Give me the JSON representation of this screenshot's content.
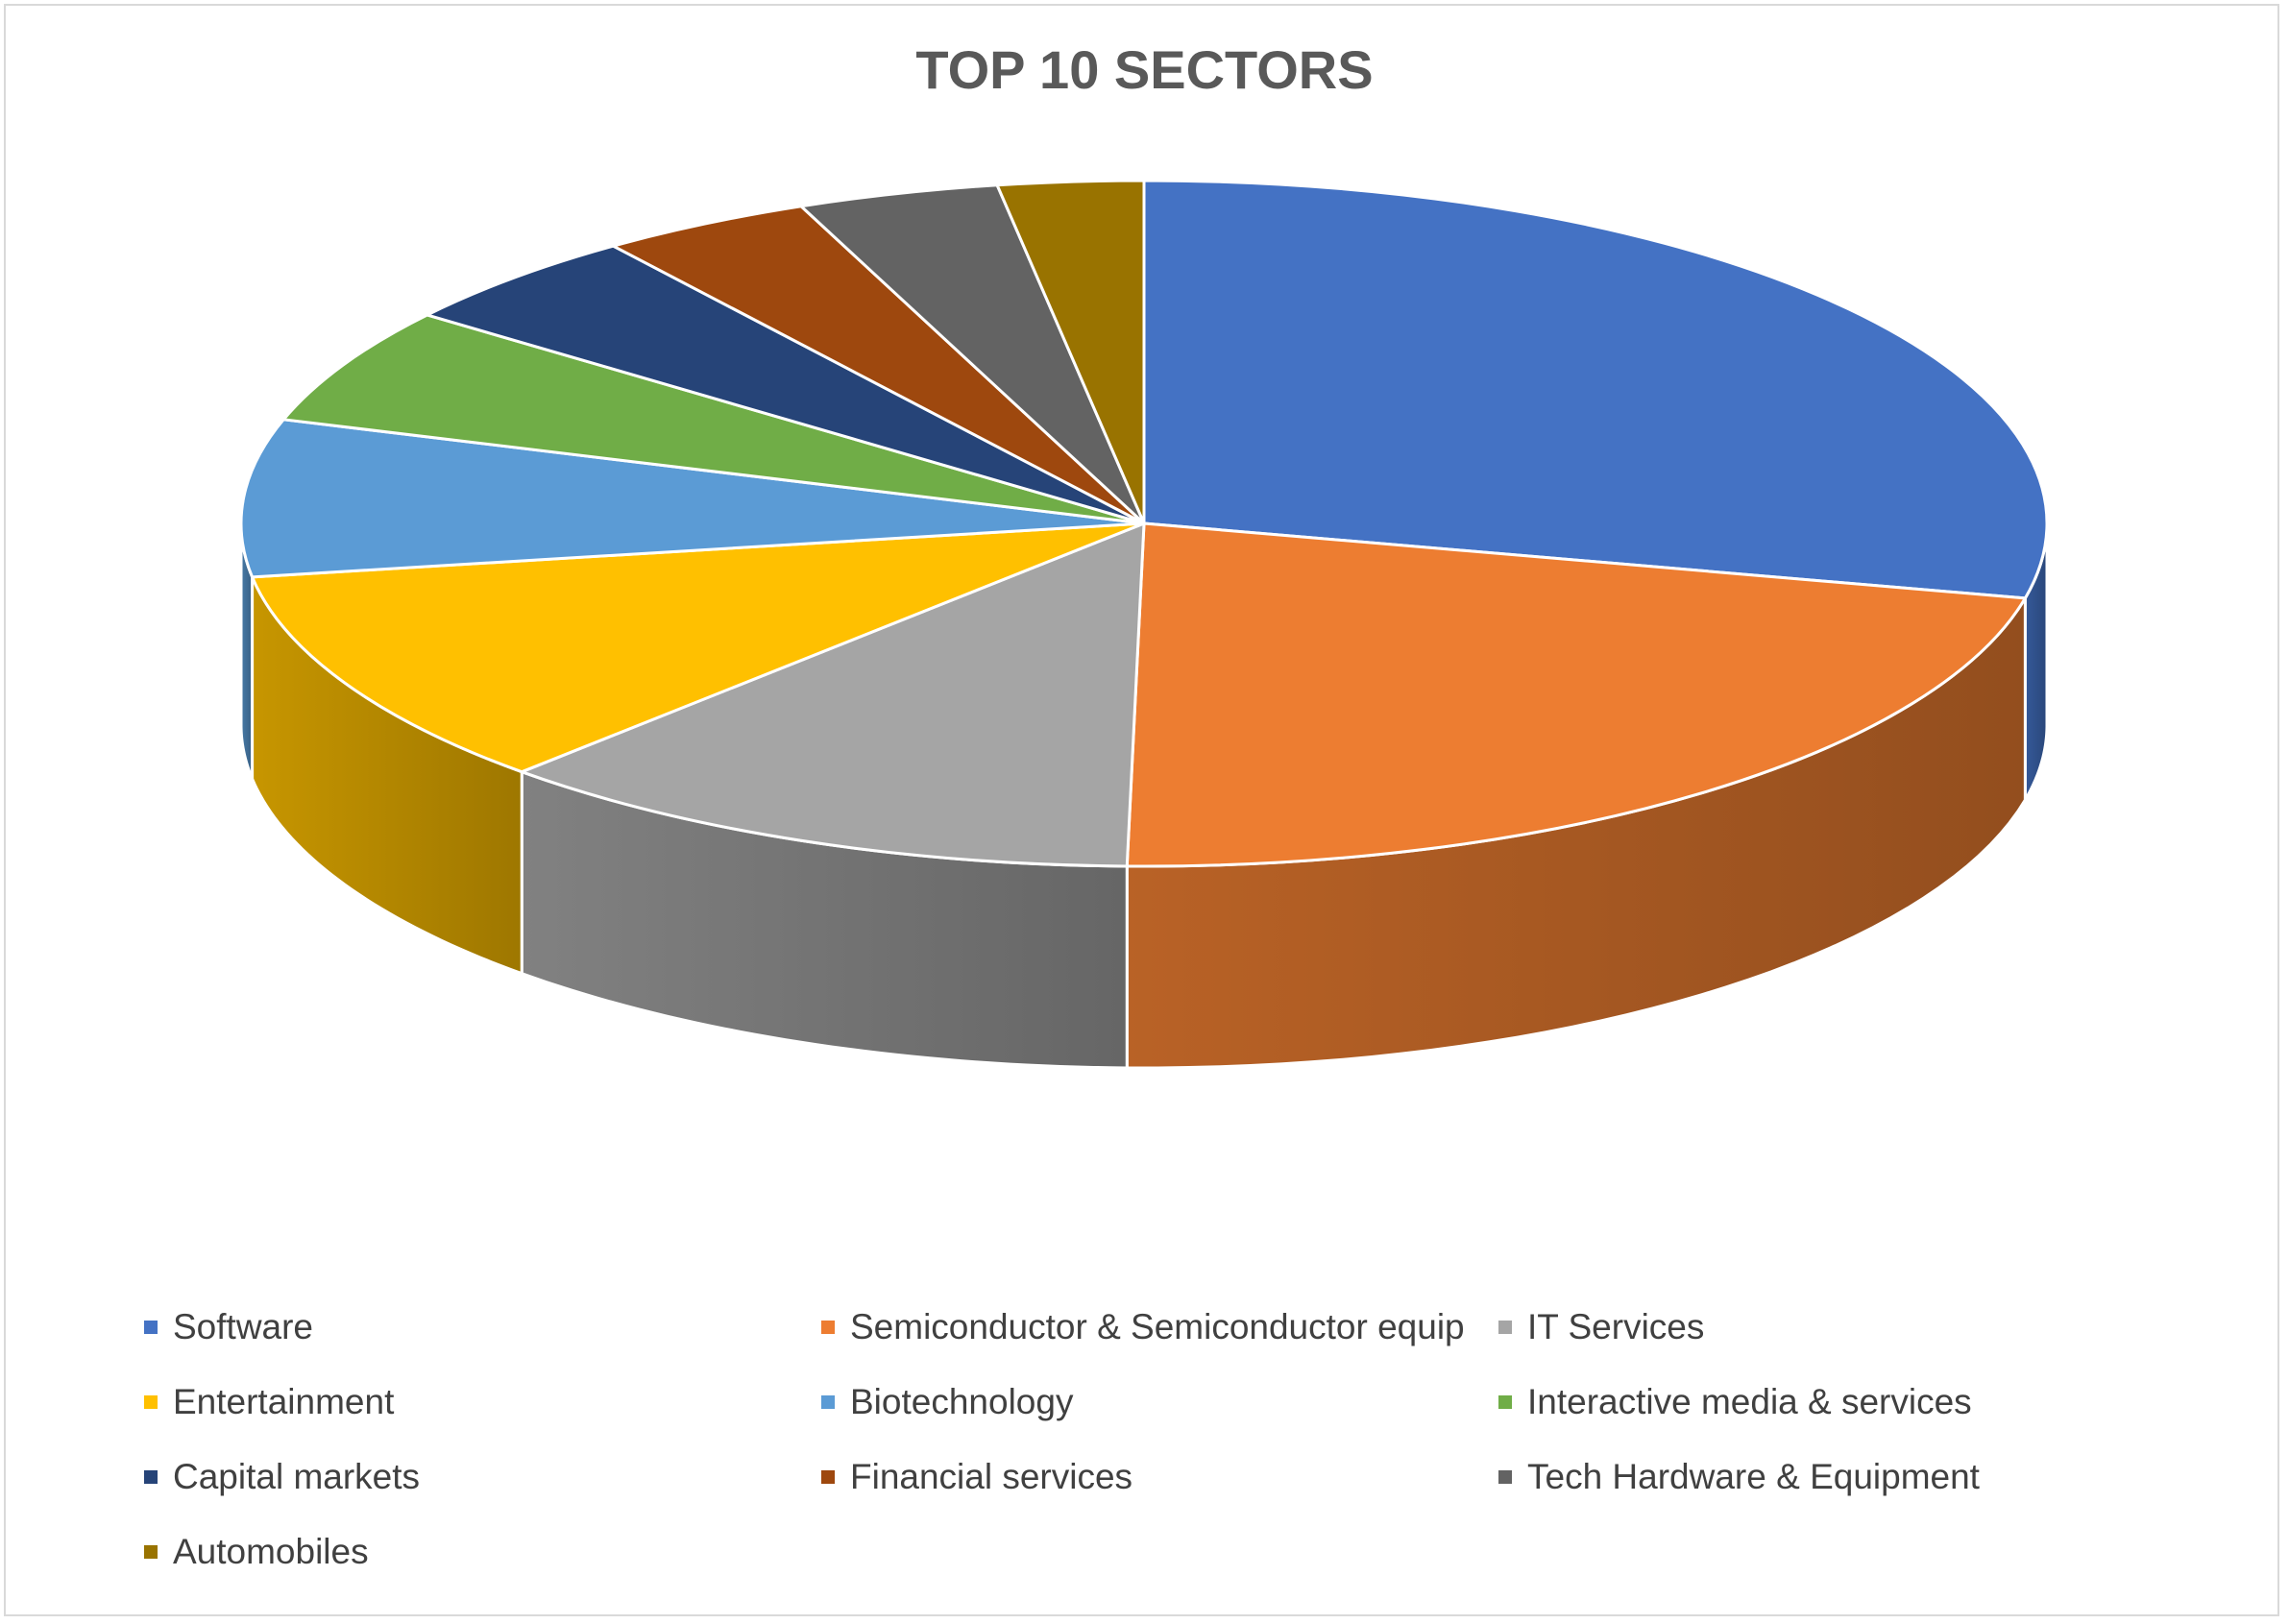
{
  "chart_data": {
    "type": "pie",
    "title": "TOP 10 SECTORS",
    "style": "3d-pie",
    "legend_position": "bottom",
    "slices": [
      {
        "label": "Software",
        "value": 28.5,
        "color": "#4472C4"
      },
      {
        "label": "Semiconductor & Semiconductor equip",
        "value": 21.8,
        "color": "#ED7D31"
      },
      {
        "label": "IT Services",
        "value": 11.8,
        "color": "#A5A5A5"
      },
      {
        "label": "Entertainment",
        "value": 10.4,
        "color": "#FFC000"
      },
      {
        "label": "Biotechnology",
        "value": 7.4,
        "color": "#5B9BD5"
      },
      {
        "label": "Interactive media & services",
        "value": 5.5,
        "color": "#70AD47"
      },
      {
        "label": "Capital markets",
        "value": 4.6,
        "color": "#264478"
      },
      {
        "label": "Financial services",
        "value": 3.8,
        "color": "#9E480E"
      },
      {
        "label": "Tech Hardware & Equipment",
        "value": 3.6,
        "color": "#636363"
      },
      {
        "label": "Automobiles",
        "value": 2.6,
        "color": "#997300"
      }
    ]
  }
}
